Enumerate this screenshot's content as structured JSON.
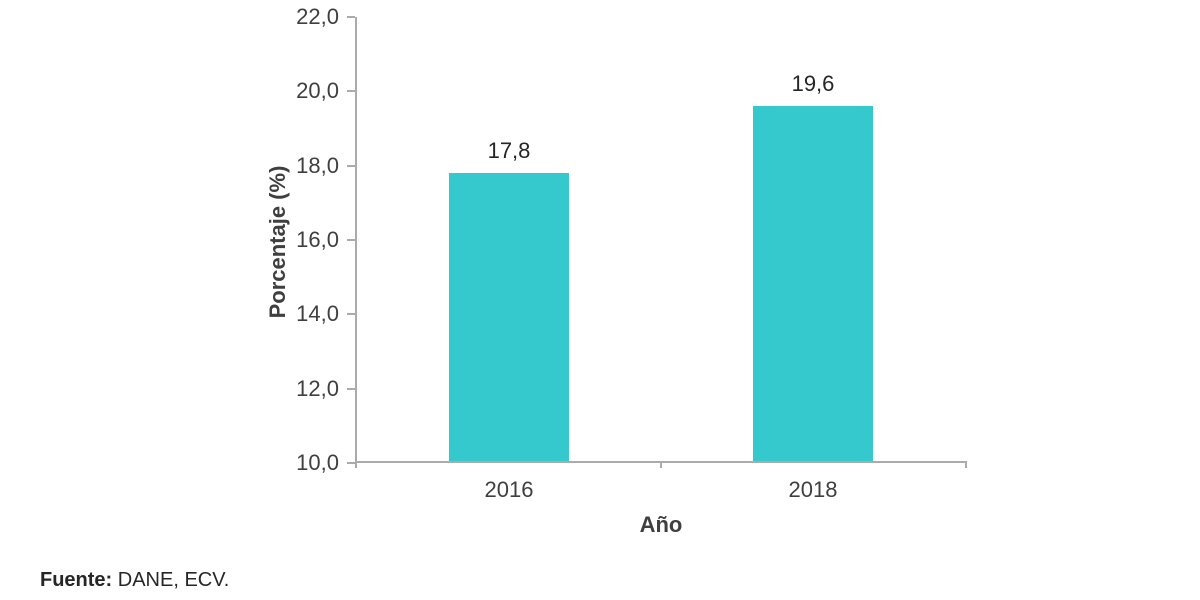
{
  "chart_data": {
    "type": "bar",
    "title": "",
    "categories": [
      "2016",
      "2018"
    ],
    "values": [
      17.8,
      19.6
    ],
    "value_labels": [
      "17,8",
      "19,6"
    ],
    "xlabel": "Año",
    "ylabel": "Porcentaje (%)",
    "ylim": [
      10,
      22
    ],
    "yticks": [
      10,
      12,
      14,
      16,
      18,
      20,
      22
    ],
    "ytick_labels": [
      "10,0",
      "12,0",
      "14,0",
      "16,0",
      "18,0",
      "20,0",
      "22,0"
    ],
    "grid": false,
    "legend_position": "none",
    "bar_color": "#35c8cd",
    "axis_color": "#ababab",
    "text_color": "#3f3f3f",
    "value_label_color": "#262626"
  },
  "footer": {
    "source_label": "Fuente:",
    "source_text": " DANE, ECV."
  }
}
